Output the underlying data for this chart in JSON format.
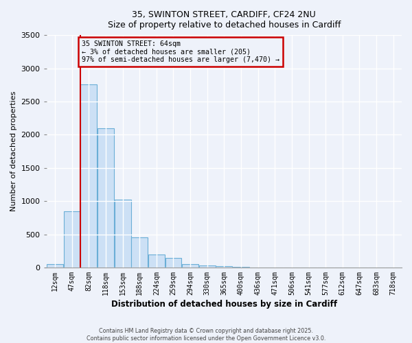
{
  "title1": "35, SWINTON STREET, CARDIFF, CF24 2NU",
  "title2": "Size of property relative to detached houses in Cardiff",
  "xlabel": "Distribution of detached houses by size in Cardiff",
  "ylabel": "Number of detached properties",
  "bar_labels": [
    "12sqm",
    "47sqm",
    "82sqm",
    "118sqm",
    "153sqm",
    "188sqm",
    "224sqm",
    "259sqm",
    "294sqm",
    "330sqm",
    "365sqm",
    "400sqm",
    "436sqm",
    "471sqm",
    "506sqm",
    "541sqm",
    "577sqm",
    "612sqm",
    "647sqm",
    "683sqm",
    "718sqm"
  ],
  "bar_values": [
    55,
    850,
    2760,
    2100,
    1025,
    455,
    200,
    145,
    55,
    30,
    15,
    5,
    2,
    1,
    0,
    0,
    0,
    0,
    0,
    0,
    0
  ],
  "bar_color": "#cce0f5",
  "bar_edge_color": "#6aaed6",
  "property_line_color": "#cc0000",
  "property_line_index": 1.5,
  "ylim": [
    0,
    3500
  ],
  "yticks": [
    0,
    500,
    1000,
    1500,
    2000,
    2500,
    3000,
    3500
  ],
  "annotation_title": "35 SWINTON STREET: 64sqm",
  "annotation_line1": "← 3% of detached houses are smaller (205)",
  "annotation_line2": "97% of semi-detached houses are larger (7,470) →",
  "annotation_box_edge_color": "#cc0000",
  "footer1": "Contains HM Land Registry data © Crown copyright and database right 2025.",
  "footer2": "Contains public sector information licensed under the Open Government Licence v3.0.",
  "background_color": "#eef2fa"
}
